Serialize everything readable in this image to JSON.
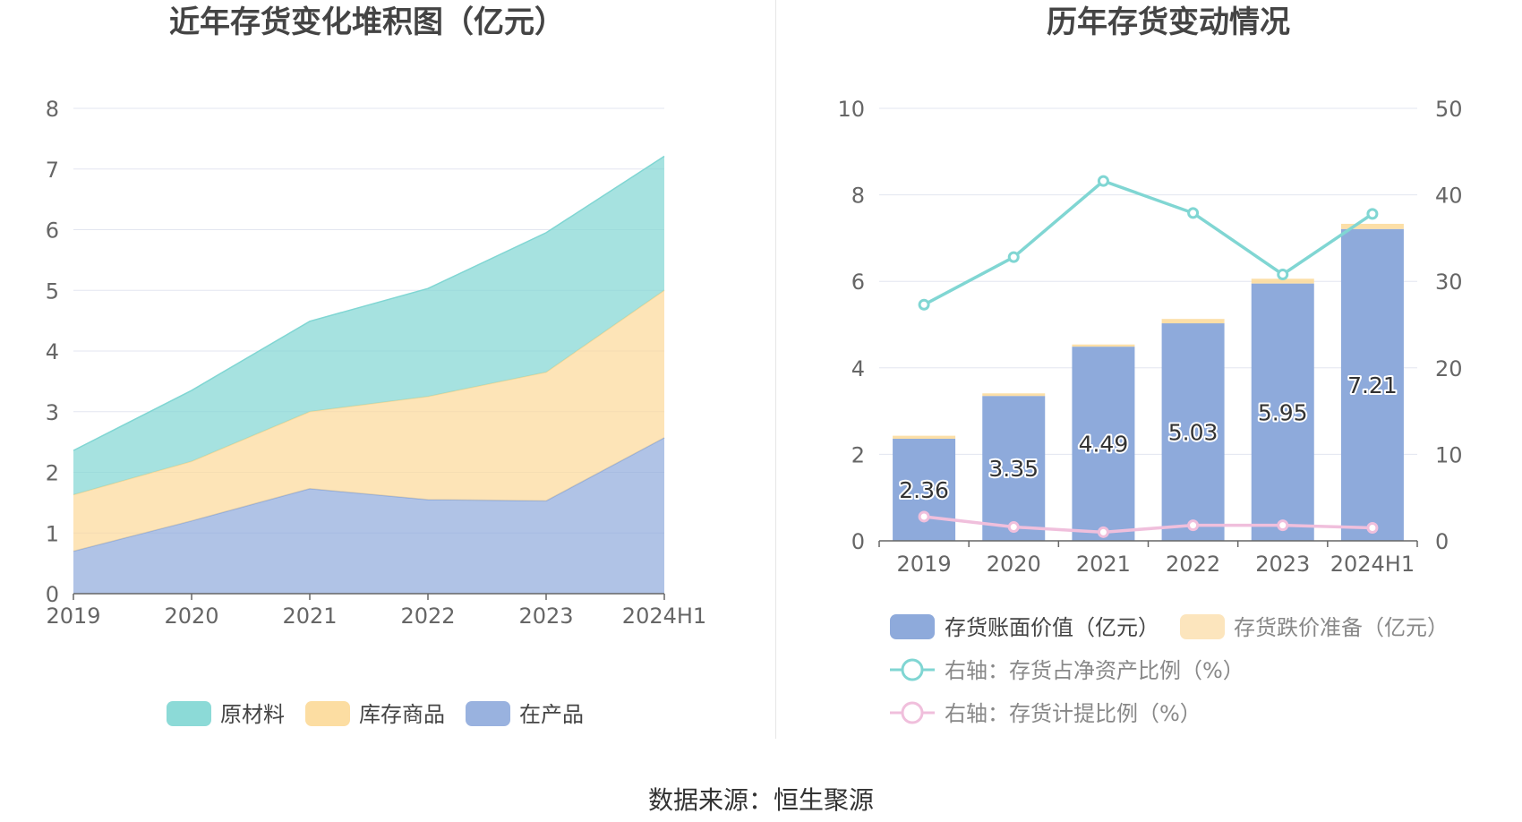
{
  "source": "数据来源：恒生聚源",
  "chart_data": [
    {
      "type": "area",
      "title": "近年存货变化堆积图（亿元）",
      "categories": [
        "2019",
        "2020",
        "2021",
        "2022",
        "2023",
        "2024H1"
      ],
      "ylim": [
        0,
        8
      ],
      "yticks": [
        0,
        1,
        2,
        3,
        4,
        5,
        6,
        7,
        8
      ],
      "stacked": true,
      "legend_position": "bottom",
      "series": [
        {
          "name": "在产品",
          "color": "#8eaadb",
          "values": [
            0.7,
            1.2,
            1.73,
            1.55,
            1.53,
            2.57
          ]
        },
        {
          "name": "库存商品",
          "color": "#fcd998",
          "values": [
            0.93,
            0.98,
            1.27,
            1.7,
            2.12,
            2.43
          ]
        },
        {
          "name": "原材料",
          "color": "#80d6d3",
          "values": [
            0.73,
            1.17,
            1.49,
            1.78,
            2.3,
            2.21
          ]
        }
      ],
      "legend_order": [
        "原材料",
        "库存商品",
        "在产品"
      ]
    },
    {
      "type": "bar",
      "title": "历年存货变动情况",
      "categories": [
        "2019",
        "2020",
        "2021",
        "2022",
        "2023",
        "2024H1"
      ],
      "ylim": [
        0,
        10
      ],
      "yticks": [
        0,
        2,
        4,
        6,
        8,
        10
      ],
      "y2lim": [
        0,
        50
      ],
      "y2ticks": [
        0,
        10,
        20,
        30,
        40,
        50
      ],
      "legend_position": "bottom",
      "bar_series": [
        {
          "name": "存货账面价值（亿元）",
          "color": "#8eaadb",
          "values": [
            2.36,
            3.35,
            4.49,
            5.03,
            5.95,
            7.21
          ],
          "labels": [
            "2.36",
            "3.35",
            "4.49",
            "5.03",
            "5.95",
            "7.21"
          ]
        },
        {
          "name": "存货跌价准备（亿元）",
          "color": "#fce5bd",
          "values": [
            0.07,
            0.06,
            0.05,
            0.1,
            0.11,
            0.12
          ]
        }
      ],
      "line_series": [
        {
          "name": "右轴：存货占净资产比例（%）",
          "color": "#80d6d3",
          "axis": "right",
          "values": [
            27.3,
            32.8,
            41.6,
            37.9,
            30.8,
            37.8
          ]
        },
        {
          "name": "右轴：存货计提比例（%）",
          "color": "#f0bfdc",
          "axis": "right",
          "values": [
            2.8,
            1.6,
            1.0,
            1.8,
            1.8,
            1.5
          ]
        }
      ]
    }
  ]
}
